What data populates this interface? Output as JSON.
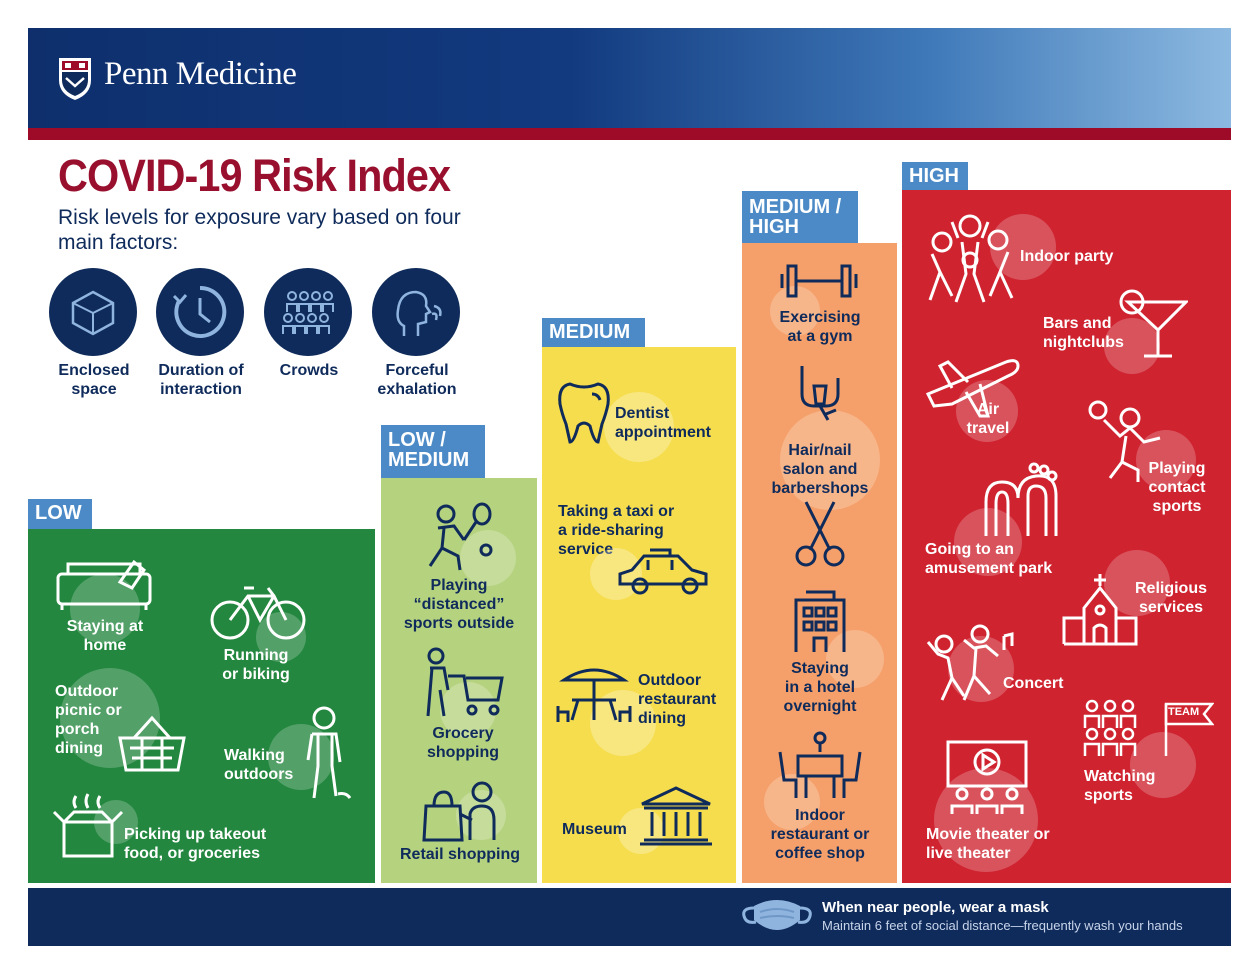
{
  "brand": {
    "name": "Penn Medicine"
  },
  "title": "COVID-19 Risk Index",
  "subtitle": "Risk levels for exposure vary based on four main factors:",
  "factors": [
    {
      "label_1": "Enclosed",
      "label_2": "space",
      "icon": "cube-icon"
    },
    {
      "label_1": "Duration of",
      "label_2": "interaction",
      "icon": "clock-icon"
    },
    {
      "label_1": "Crowds",
      "label_2": "",
      "icon": "crowd-icon"
    },
    {
      "label_1": "Forceful",
      "label_2": "exhalation",
      "icon": "exhalation-icon"
    }
  ],
  "levels": {
    "low": {
      "label": "LOW",
      "color": "#23873f",
      "items": {
        "home": {
          "l1": "Staying at",
          "l2": "home"
        },
        "biking": {
          "l1": "Running",
          "l2": "or biking"
        },
        "picnic": {
          "l1": "Outdoor",
          "l2": "picnic or",
          "l3": "porch",
          "l4": "dining"
        },
        "walking": {
          "l1": "Walking",
          "l2": "outdoors"
        },
        "takeout": {
          "l1": "Picking up takeout",
          "l2": "food, or groceries"
        }
      }
    },
    "low_medium": {
      "label_1": "LOW /",
      "label_2": "MEDIUM",
      "color": "#b5d27f",
      "items": {
        "sports": {
          "l1": "Playing",
          "l2": "“distanced”",
          "l3": "sports outside"
        },
        "grocery": {
          "l1": "Grocery",
          "l2": "shopping"
        },
        "retail": {
          "l1": "Retail shopping"
        }
      }
    },
    "medium": {
      "label": "MEDIUM",
      "color": "#f6dd4e",
      "items": {
        "dentist": {
          "l1": "Dentist",
          "l2": "appointment"
        },
        "taxi": {
          "l1": "Taking a taxi or",
          "l2": "a ride-sharing",
          "l3": "service"
        },
        "outdoor_dining": {
          "l1": "Outdoor",
          "l2": "restaurant",
          "l3": "dining"
        },
        "museum": {
          "l1": "Museum"
        }
      }
    },
    "medium_high": {
      "label_1": "MEDIUM /",
      "label_2": "HIGH",
      "color": "#f5a06a",
      "items": {
        "gym": {
          "l1": "Exercising",
          "l2": "at a gym"
        },
        "salon": {
          "l1": "Hair/nail",
          "l2": "salon and",
          "l3": "barbershops"
        },
        "hotel": {
          "l1": "Staying",
          "l2": "in a hotel",
          "l3": "overnight"
        },
        "indoor_restaurant": {
          "l1": "Indoor",
          "l2": "restaurant or",
          "l3": "coffee shop"
        }
      }
    },
    "high": {
      "label": "HIGH",
      "color": "#cf2330",
      "items": {
        "party": {
          "l1": "Indoor party"
        },
        "bars": {
          "l1": "Bars and",
          "l2": "nightclubs"
        },
        "air": {
          "l1": "Air",
          "l2": "travel"
        },
        "contact": {
          "l1": "Playing",
          "l2": "contact",
          "l3": "sports"
        },
        "amusement": {
          "l1": "Going to an",
          "l2": "amusement park"
        },
        "religious": {
          "l1": "Religious",
          "l2": "services"
        },
        "concert": {
          "l1": "Concert"
        },
        "watching": {
          "l1": "Watching",
          "l2": "sports",
          "team_sign": "TEAM"
        },
        "movie": {
          "l1": "Movie theater or",
          "l2": "live theater"
        }
      }
    }
  },
  "footer": {
    "line1": "When near people, wear a mask",
    "line2": "Maintain 6 feet of social distance—frequently wash your hands",
    "icon": "mask-icon"
  }
}
